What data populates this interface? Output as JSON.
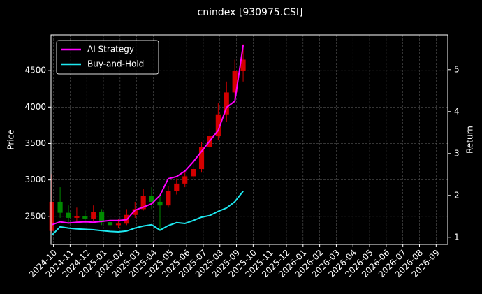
{
  "chart_data": {
    "type": "candlestick",
    "title": "cnindex [930975.CSI]",
    "ylabel": "Price",
    "y2label": "Return",
    "x": [
      -0.1,
      0.4,
      0.9,
      1.4,
      1.9,
      2.4,
      2.9,
      3.4,
      3.9,
      4.4,
      4.9,
      5.4,
      5.9,
      6.4,
      6.9,
      7.4,
      7.9,
      8.4,
      8.9,
      9.4,
      9.9,
      10.4,
      10.9,
      11.4
    ],
    "open": [
      2300,
      2700,
      2550,
      2480,
      2500,
      2470,
      2560,
      2420,
      2380,
      2400,
      2520,
      2600,
      2780,
      2700,
      2650,
      2850,
      2950,
      3050,
      3150,
      3450,
      3600,
      3900,
      4200,
      4500
    ],
    "high": [
      3080,
      2900,
      2650,
      2620,
      2580,
      2650,
      2600,
      2480,
      2460,
      2600,
      2700,
      2880,
      2900,
      2800,
      2920,
      3020,
      3120,
      3250,
      3520,
      3700,
      4050,
      4350,
      4650,
      4860
    ],
    "low": [
      2280,
      2480,
      2420,
      2420,
      2400,
      2430,
      2380,
      2320,
      2340,
      2380,
      2480,
      2580,
      2600,
      2300,
      2620,
      2800,
      2900,
      3000,
      3100,
      3380,
      3550,
      3800,
      4100,
      4350
    ],
    "close": [
      2700,
      2550,
      2480,
      2500,
      2470,
      2560,
      2420,
      2380,
      2400,
      2520,
      2600,
      2780,
      2700,
      2650,
      2850,
      2950,
      3050,
      3150,
      3450,
      3600,
      3900,
      4200,
      4500,
      4650
    ],
    "up_color": "#d40000",
    "down_color": "#008a00",
    "series": [
      {
        "name": "AI Strategy",
        "color": "#ff00ff",
        "axis": "y2",
        "values": [
          1.3,
          1.37,
          1.34,
          1.36,
          1.37,
          1.36,
          1.38,
          1.4,
          1.4,
          1.42,
          1.65,
          1.72,
          1.8,
          2.0,
          2.4,
          2.45,
          2.58,
          2.8,
          3.05,
          3.3,
          3.55,
          4.1,
          4.25,
          5.58
        ]
      },
      {
        "name": "Buy-and-Hold",
        "color": "#1ee8f0",
        "axis": "y2",
        "values": [
          1.05,
          1.25,
          1.22,
          1.2,
          1.19,
          1.18,
          1.16,
          1.14,
          1.13,
          1.15,
          1.22,
          1.27,
          1.3,
          1.17,
          1.28,
          1.35,
          1.33,
          1.4,
          1.48,
          1.52,
          1.62,
          1.7,
          1.85,
          2.1
        ]
      }
    ],
    "xlim": [
      -0.15,
      23.7
    ],
    "xticks": [
      {
        "value": 0,
        "label": "2024-10"
      },
      {
        "value": 1,
        "label": "2024-11"
      },
      {
        "value": 2,
        "label": "2024-12"
      },
      {
        "value": 3,
        "label": "2025-01"
      },
      {
        "value": 4,
        "label": "2025-02"
      },
      {
        "value": 5,
        "label": "2025-03"
      },
      {
        "value": 6,
        "label": "2025-04"
      },
      {
        "value": 7,
        "label": "2025-05"
      },
      {
        "value": 8,
        "label": "2025-06"
      },
      {
        "value": 9,
        "label": "2025-07"
      },
      {
        "value": 10,
        "label": "2025-08"
      },
      {
        "value": 11,
        "label": "2025-09"
      },
      {
        "value": 12,
        "label": "2025-10"
      },
      {
        "value": 13,
        "label": "2025-11"
      },
      {
        "value": 14,
        "label": "2025-12"
      },
      {
        "value": 15,
        "label": "2026-01"
      },
      {
        "value": 16,
        "label": "2026-02"
      },
      {
        "value": 17,
        "label": "2026-03"
      },
      {
        "value": 18,
        "label": "2026-04"
      },
      {
        "value": 19,
        "label": "2026-05"
      },
      {
        "value": 20,
        "label": "2026-06"
      },
      {
        "value": 21,
        "label": "2026-07"
      },
      {
        "value": 22,
        "label": "2026-08"
      },
      {
        "value": 23,
        "label": "2026-09"
      }
    ],
    "ylim": [
      2115,
      4990
    ],
    "yticks": [
      2500,
      3000,
      3500,
      4000,
      4500
    ],
    "y2lim": [
      0.83,
      5.83
    ],
    "y2ticks": [
      1,
      2,
      3,
      4,
      5
    ],
    "grid": true,
    "legend": "upper left"
  }
}
